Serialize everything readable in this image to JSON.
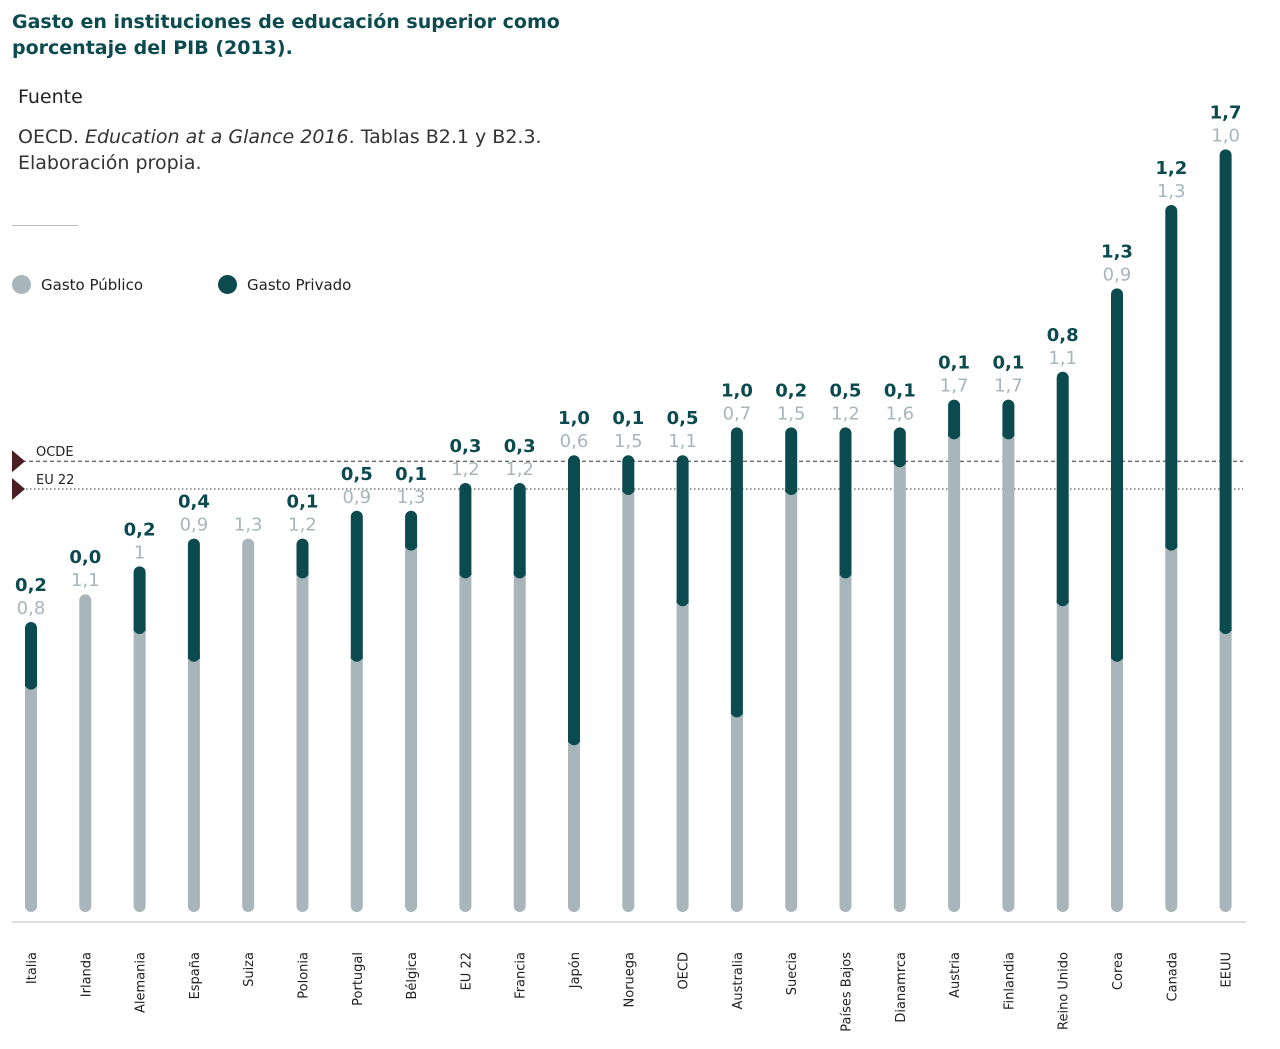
{
  "title": "Gasto en instituciones de educación superior como porcentaje del PIB (2013).",
  "source": {
    "heading": "Fuente",
    "text_before": "OECD. ",
    "text_italic": "Education at a Glance 2016",
    "text_after": ". Tablas B2.1 y B2.3.",
    "text_line2": "Elaboración propia."
  },
  "legend": {
    "public_label": "Gasto Público",
    "private_label": "Gasto Privado"
  },
  "colors": {
    "public": "#a8b6bb",
    "private": "#0b4a4e",
    "reference_marker": "#4a1e22"
  },
  "chart_data": {
    "type": "bar",
    "stacked": true,
    "ylim": [
      0,
      2.7
    ],
    "grid": false,
    "legend_position": "top-left",
    "categories": [
      "Italia",
      "Irlanda",
      "Alemania",
      "España",
      "Suiza",
      "Polonia",
      "Portugal",
      "Bélgica",
      "EU 22",
      "Francia",
      "Japón",
      "Noruega",
      "OECD",
      "Australia",
      "Suecia",
      "Países Bajos",
      "Dianamrca",
      "Austria",
      "Finlandia",
      "Reino Unido",
      "Corea",
      "Canada",
      "EEUU"
    ],
    "series": [
      {
        "name": "Gasto Público",
        "values": [
          0.8,
          1.1,
          1,
          0.9,
          1.3,
          1.2,
          0.9,
          1.3,
          1.2,
          1.2,
          0.6,
          1.5,
          1.1,
          0.7,
          1.5,
          1.2,
          1.6,
          1.7,
          1.7,
          1.1,
          0.9,
          1.3,
          1.0
        ],
        "labels": [
          "0,8",
          "1,1",
          "1",
          "0,9",
          "1,3",
          "1,2",
          "0,9",
          "1,3",
          "1,2",
          "1,2",
          "0,6",
          "1,5",
          "1,1",
          "0,7",
          "1,5",
          "1,2",
          "1,6",
          "1,7",
          "1,7",
          "1,1",
          "0,9",
          "1,3",
          "1,0"
        ]
      },
      {
        "name": "Gasto Privado",
        "values": [
          0.2,
          0.0,
          0.2,
          0.4,
          0,
          0.1,
          0.5,
          0.1,
          0.3,
          0.3,
          1.0,
          0.1,
          0.5,
          1.0,
          0.2,
          0.5,
          0.1,
          0.1,
          0.1,
          0.8,
          1.3,
          1.2,
          1.7
        ],
        "labels": [
          "0,2",
          "0,0",
          "0,2",
          "0,4",
          "",
          "0,1",
          "0,5",
          "0,1",
          "0,3",
          "0,3",
          "1,0",
          "0,1",
          "0,5",
          "1,0",
          "0,2",
          "0,5",
          "0,1",
          "0,1",
          "0,1",
          "0,8",
          "1,3",
          "1,2",
          "1,7"
        ]
      }
    ],
    "reference_lines": [
      {
        "label": "OCDE",
        "value": 1.6,
        "style": "dashed"
      },
      {
        "label": "EU 22",
        "value": 1.5,
        "style": "dotted"
      }
    ]
  }
}
